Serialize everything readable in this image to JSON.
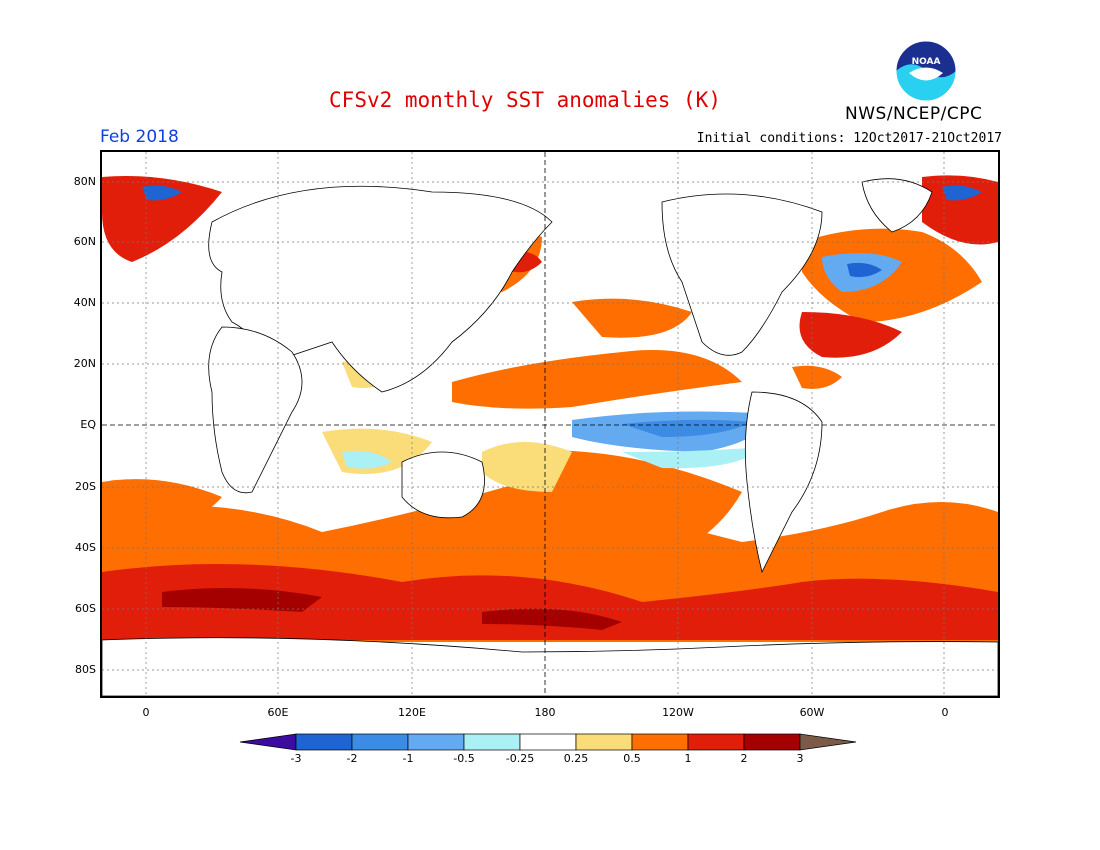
{
  "header": {
    "title": "CFSv2 monthly SST anomalies (K)",
    "agency": "NWS/NCEP/CPC",
    "month": "Feb 2018",
    "initial_conditions": "Initial conditions: 12Oct2017-21Oct2017"
  },
  "logo": {
    "icon": "noaa-logo-icon",
    "text": "NOAA"
  },
  "axes": {
    "y_ticks": [
      "80N",
      "60N",
      "40N",
      "20N",
      "EQ",
      "20S",
      "40S",
      "60S",
      "80S"
    ],
    "x_ticks": [
      "0",
      "60E",
      "120E",
      "180",
      "120W",
      "60W",
      "0"
    ]
  },
  "colorbar": {
    "labels": [
      "-3",
      "-2",
      "-1",
      "-0.5",
      "-0.25",
      "0.25",
      "0.5",
      "1",
      "2",
      "3"
    ],
    "colors": {
      "lt_minus3": "#3c0ca0",
      "minus3_minus2": "#1e64d2",
      "minus2_minus1": "#3c8ce6",
      "minus1_minus05": "#64aaf0",
      "minus05_minus025": "#aaf0f5",
      "neutral": "#ffffff",
      "p025_p05": "#fadc78",
      "p05_p1": "#ff6e00",
      "p1_p2": "#e11e0a",
      "p2_p3": "#a50000",
      "gt3": "#7b5a48"
    }
  }
}
